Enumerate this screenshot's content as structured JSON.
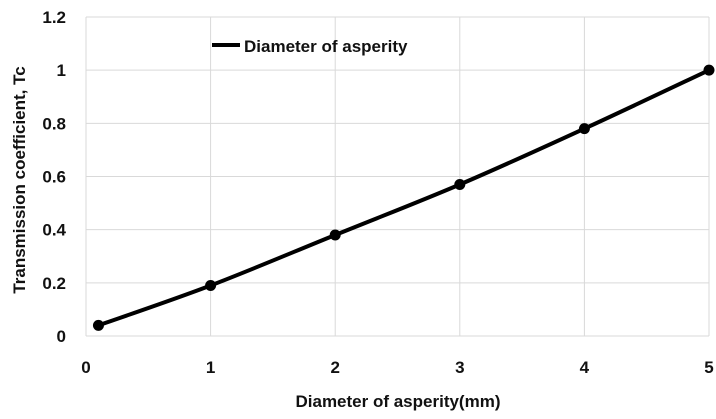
{
  "chart_data": {
    "type": "line",
    "title": "",
    "xlabel": "Diameter of asperity(mm)",
    "ylabel": "Transmission coefficient, Tc",
    "xlim": [
      0,
      5
    ],
    "ylim": [
      0,
      1.2
    ],
    "x_ticks": [
      "0",
      "1",
      "2",
      "3",
      "4",
      "5"
    ],
    "y_ticks": [
      "0",
      "0.2",
      "0.4",
      "0.6",
      "0.8",
      "1",
      "1.2"
    ],
    "grid": true,
    "legend_position": "top-left",
    "series": [
      {
        "name": "Diameter of asperity",
        "color": "#000000",
        "marker": "circle",
        "x": [
          0.1,
          1,
          2,
          3,
          4,
          5
        ],
        "y": [
          0.04,
          0.19,
          0.38,
          0.57,
          0.78,
          1.0
        ]
      }
    ]
  }
}
